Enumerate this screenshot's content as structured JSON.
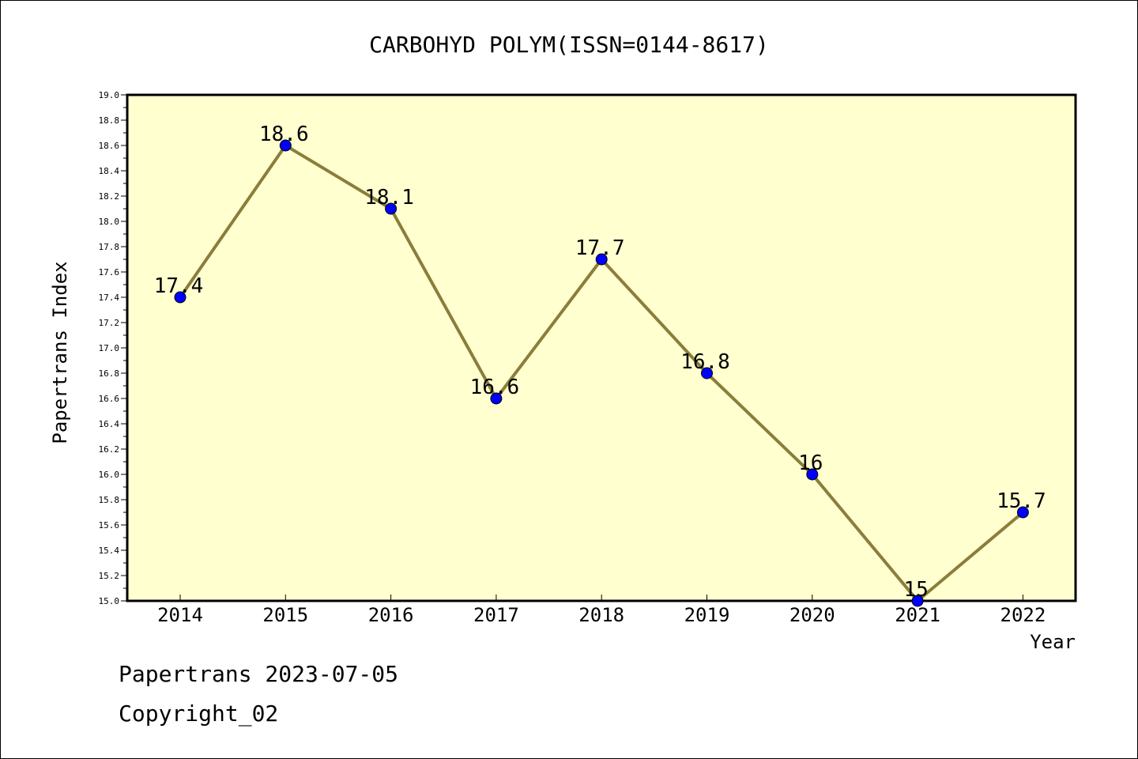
{
  "chart_data": {
    "type": "line",
    "title": "CARBOHYD POLYM(ISSN=0144-8617)",
    "xlabel": "Year",
    "ylabel": "Papertrans Index",
    "categories": [
      "2014",
      "2015",
      "2016",
      "2017",
      "2018",
      "2019",
      "2020",
      "2021",
      "2022"
    ],
    "series": [
      {
        "values": [
          17.4,
          18.6,
          18.1,
          16.6,
          17.7,
          16.8,
          16.0,
          15.0,
          15.7
        ],
        "data_labels": [
          "17.4",
          "18.6",
          "18.1",
          "16.6",
          "17.7",
          "16.8",
          "16",
          "15",
          "15.7"
        ]
      }
    ],
    "ylim": [
      15.0,
      19.0
    ],
    "y_tick_step": 0.2,
    "y_tick_labels": [
      "15.0",
      "15.2",
      "15.4",
      "15.6",
      "15.8",
      "16.0",
      "16.2",
      "16.4",
      "16.6",
      "16.8",
      "17.0",
      "17.2",
      "17.4",
      "17.6",
      "17.8",
      "18.0",
      "18.2",
      "18.4",
      "18.6",
      "18.8",
      "19.0"
    ],
    "grid": false,
    "legend": "none",
    "colors": {
      "plot_background": "#ffffd0",
      "line": "#8b7d3a",
      "marker": "#0000ff",
      "axis": "#000000"
    }
  },
  "footer": {
    "date_text": "Papertrans 2023-07-05",
    "copyright_text": "Copyright_02"
  }
}
